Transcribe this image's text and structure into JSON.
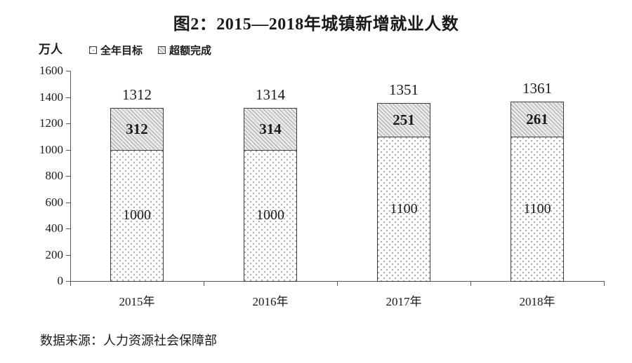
{
  "chart_data": {
    "type": "bar",
    "stacked": true,
    "title": "图2：2015—2018年城镇新增就业人数",
    "unit_label": "万人",
    "categories": [
      "2015年",
      "2016年",
      "2017年",
      "2018年"
    ],
    "series": [
      {
        "name": "全年目标",
        "pattern": "dots",
        "values": [
          1000,
          1000,
          1100,
          1100
        ]
      },
      {
        "name": "超额完成",
        "pattern": "hatch",
        "values": [
          312,
          314,
          251,
          261
        ]
      }
    ],
    "totals": [
      1312,
      1314,
      1351,
      1361
    ],
    "ylim": [
      0,
      1600
    ],
    "yticks": [
      0,
      200,
      400,
      600,
      800,
      1000,
      1200,
      1400,
      1600
    ],
    "grid": false,
    "legend_position": "top-left",
    "source": "数据来源：人力资源社会保障部"
  },
  "colors": {
    "background": "#ffffff",
    "text": "#1a1a1a",
    "axis": "#595959",
    "bar_border": "#3f3f3f",
    "hatch_bg": "#e9e9e9",
    "hatch_line": "#a8a8a8",
    "dot": "#9a9a9a"
  }
}
